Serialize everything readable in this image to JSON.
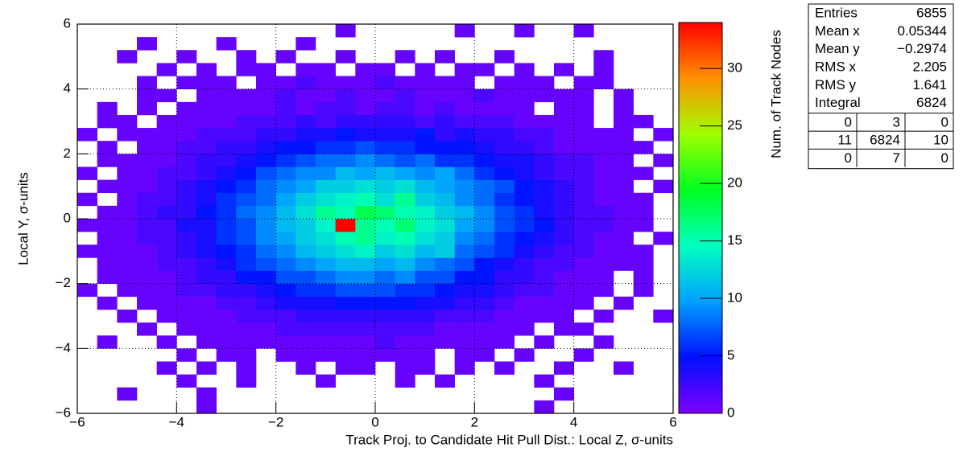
{
  "chart_data": {
    "type": "heatmap2d",
    "x_label": "Track Proj. to Candidate Hit Pull Dist.: Local Z, σ-units",
    "y_label": "Local Y, σ-units",
    "z_label": "Num. of Track Nodes",
    "xlim": [
      -6,
      6
    ],
    "ylim": [
      -6,
      6
    ],
    "zlim": [
      0,
      34
    ],
    "xticks": [
      {
        "value": -6,
        "label": "−6"
      },
      {
        "value": -4,
        "label": "−4"
      },
      {
        "value": -2,
        "label": "−2"
      },
      0,
      2,
      4,
      6
    ],
    "yticks": [
      {
        "value": -6,
        "label": "−6"
      },
      {
        "value": -4,
        "label": "−4"
      },
      {
        "value": -2,
        "label": "−2"
      },
      0,
      2,
      4,
      6
    ],
    "zticks": [
      0,
      5,
      10,
      15,
      20,
      25,
      30
    ],
    "grid": true,
    "palette": [
      "#8000ff",
      "#0010ff",
      "#00a0ff",
      "#00ffc0",
      "#00ff20",
      "#a0ff00",
      "#ff9000",
      "#ff0000"
    ],
    "xbins": [
      -6,
      -5.6,
      -5.2,
      -4.8,
      -4.4,
      -4,
      -3.6,
      -3.2,
      -2.8,
      -2.4,
      -2,
      -1.6,
      -1.2,
      -0.8,
      -0.4,
      0,
      0.4,
      0.8,
      1.2,
      1.6,
      2,
      2.4,
      2.8,
      3.2,
      3.6,
      4,
      4.4,
      4.8,
      5.2,
      5.6,
      6
    ],
    "ybins": [
      -6,
      -5.6,
      -5.2,
      -4.8,
      -4.4,
      -4,
      -3.6,
      -3.2,
      -2.8,
      -2.4,
      -2,
      -1.6,
      -1.2,
      -0.8,
      -0.4,
      0,
      0.4,
      0.8,
      1.2,
      1.6,
      2,
      2.4,
      2.8,
      3.2,
      3.6,
      4,
      4.4,
      4.8,
      5.2,
      5.6,
      6
    ],
    "z": [
      [
        0,
        0,
        0,
        0,
        0,
        0,
        1,
        0,
        0,
        0,
        0,
        0,
        0,
        0,
        0,
        0,
        0,
        0,
        0,
        0,
        0,
        0,
        0,
        1,
        0,
        0,
        0,
        0,
        0,
        0
      ],
      [
        0,
        0,
        1,
        0,
        0,
        0,
        1,
        0,
        0,
        0,
        0,
        0,
        0,
        0,
        0,
        0,
        0,
        0,
        0,
        0,
        0,
        0,
        0,
        0,
        1,
        0,
        0,
        0,
        0,
        0
      ],
      [
        0,
        0,
        0,
        0,
        0,
        1,
        0,
        0,
        1,
        0,
        0,
        0,
        1,
        0,
        0,
        0,
        1,
        0,
        1,
        0,
        0,
        0,
        0,
        1,
        0,
        0,
        0,
        0,
        0,
        0
      ],
      [
        0,
        0,
        0,
        0,
        1,
        0,
        1,
        0,
        1,
        0,
        0,
        1,
        0,
        1,
        1,
        0,
        1,
        1,
        0,
        1,
        0,
        1,
        0,
        0,
        1,
        0,
        0,
        1,
        0,
        0
      ],
      [
        0,
        0,
        0,
        0,
        0,
        1,
        0,
        1,
        1,
        0,
        1,
        1,
        1,
        1,
        1,
        1,
        1,
        1,
        0,
        1,
        1,
        0,
        1,
        0,
        0,
        1,
        0,
        0,
        0,
        0
      ],
      [
        0,
        1,
        0,
        0,
        1,
        0,
        1,
        1,
        1,
        1,
        1,
        1,
        1,
        1,
        1,
        2,
        1,
        1,
        1,
        1,
        1,
        1,
        0,
        1,
        0,
        0,
        1,
        0,
        0,
        0
      ],
      [
        0,
        0,
        0,
        1,
        0,
        1,
        1,
        1,
        1,
        1,
        2,
        2,
        2,
        2,
        2,
        2,
        2,
        2,
        1,
        1,
        1,
        1,
        1,
        0,
        1,
        1,
        0,
        0,
        0,
        0
      ],
      [
        0,
        0,
        1,
        0,
        1,
        1,
        1,
        1,
        2,
        2,
        2,
        3,
        3,
        3,
        3,
        3,
        3,
        3,
        2,
        2,
        2,
        1,
        1,
        1,
        1,
        0,
        1,
        0,
        0,
        1
      ],
      [
        0,
        1,
        0,
        1,
        1,
        1,
        1,
        2,
        2,
        3,
        4,
        4,
        4,
        5,
        5,
        5,
        5,
        4,
        4,
        3,
        3,
        2,
        1,
        1,
        1,
        1,
        0,
        1,
        0,
        0
      ],
      [
        1,
        0,
        1,
        1,
        1,
        2,
        2,
        3,
        3,
        4,
        5,
        6,
        6,
        7,
        7,
        7,
        6,
        6,
        5,
        4,
        4,
        3,
        2,
        2,
        1,
        1,
        1,
        0,
        1,
        0
      ],
      [
        0,
        1,
        1,
        1,
        1,
        2,
        3,
        3,
        5,
        5,
        7,
        7,
        8,
        9,
        9,
        8,
        9,
        7,
        7,
        5,
        5,
        3,
        3,
        2,
        1,
        1,
        1,
        0,
        1,
        0
      ],
      [
        0,
        1,
        1,
        1,
        2,
        2,
        3,
        4,
        6,
        7,
        8,
        9,
        10,
        11,
        11,
        10,
        11,
        9,
        8,
        7,
        5,
        4,
        3,
        2,
        2,
        1,
        1,
        1,
        1,
        0
      ],
      [
        1,
        1,
        1,
        1,
        2,
        3,
        4,
        5,
        6,
        8,
        9,
        11,
        12,
        13,
        14,
        12,
        13,
        11,
        12,
        8,
        7,
        6,
        4,
        3,
        2,
        2,
        1,
        1,
        1,
        0
      ],
      [
        0,
        1,
        1,
        2,
        2,
        3,
        4,
        6,
        7,
        9,
        10,
        12,
        13,
        15,
        16,
        14,
        15,
        13,
        12,
        9,
        8,
        6,
        5,
        4,
        3,
        2,
        1,
        1,
        0,
        1
      ],
      [
        1,
        1,
        1,
        2,
        2,
        4,
        4,
        6,
        7,
        9,
        11,
        12,
        14,
        34,
        16,
        15,
        17,
        14,
        13,
        10,
        9,
        7,
        6,
        5,
        3,
        2,
        2,
        1,
        1,
        0
      ],
      [
        0,
        1,
        1,
        2,
        3,
        3,
        5,
        6,
        8,
        9,
        11,
        13,
        16,
        15,
        18,
        17,
        15,
        14,
        12,
        11,
        9,
        7,
        6,
        4,
        3,
        2,
        2,
        1,
        1,
        0
      ],
      [
        1,
        0,
        1,
        2,
        2,
        3,
        4,
        6,
        7,
        8,
        10,
        12,
        13,
        14,
        15,
        13,
        16,
        12,
        11,
        9,
        8,
        6,
        5,
        4,
        3,
        2,
        1,
        1,
        1,
        0
      ],
      [
        0,
        1,
        1,
        1,
        2,
        3,
        4,
        5,
        6,
        8,
        9,
        10,
        12,
        12,
        13,
        12,
        13,
        11,
        10,
        9,
        8,
        7,
        5,
        4,
        3,
        2,
        1,
        1,
        0,
        1
      ],
      [
        1,
        0,
        1,
        1,
        2,
        2,
        3,
        4,
        5,
        7,
        8,
        9,
        9,
        11,
        10,
        11,
        10,
        9,
        10,
        8,
        6,
        5,
        4,
        3,
        2,
        2,
        1,
        1,
        1,
        0
      ],
      [
        0,
        1,
        1,
        1,
        1,
        2,
        3,
        3,
        4,
        5,
        6,
        7,
        8,
        8,
        9,
        8,
        7,
        8,
        6,
        6,
        5,
        4,
        4,
        3,
        2,
        2,
        1,
        1,
        0,
        1
      ],
      [
        0,
        1,
        0,
        1,
        1,
        2,
        2,
        3,
        3,
        4,
        5,
        5,
        6,
        6,
        7,
        6,
        6,
        5,
        5,
        5,
        4,
        3,
        3,
        2,
        1,
        1,
        1,
        1,
        1,
        0
      ],
      [
        1,
        0,
        1,
        1,
        1,
        1,
        2,
        2,
        2,
        3,
        3,
        4,
        4,
        5,
        4,
        4,
        4,
        5,
        3,
        4,
        3,
        3,
        2,
        2,
        1,
        1,
        1,
        1,
        0,
        1
      ],
      [
        0,
        1,
        1,
        0,
        1,
        1,
        1,
        1,
        2,
        2,
        2,
        3,
        2,
        3,
        3,
        3,
        3,
        2,
        3,
        2,
        2,
        2,
        1,
        1,
        1,
        1,
        0,
        1,
        1,
        0
      ],
      [
        0,
        1,
        0,
        1,
        0,
        1,
        1,
        1,
        1,
        1,
        2,
        1,
        2,
        2,
        1,
        2,
        2,
        1,
        2,
        1,
        1,
        1,
        1,
        0,
        1,
        1,
        0,
        1,
        0,
        0
      ],
      [
        0,
        0,
        0,
        1,
        1,
        0,
        1,
        1,
        1,
        1,
        2,
        1,
        1,
        2,
        1,
        1,
        2,
        1,
        1,
        1,
        2,
        1,
        1,
        1,
        1,
        1,
        0,
        1,
        0,
        0
      ],
      [
        0,
        0,
        0,
        1,
        0,
        1,
        1,
        1,
        0,
        1,
        1,
        2,
        1,
        1,
        1,
        2,
        1,
        1,
        1,
        1,
        0,
        1,
        1,
        1,
        0,
        1,
        1,
        0,
        0,
        0
      ],
      [
        0,
        0,
        0,
        0,
        1,
        0,
        1,
        0,
        1,
        1,
        0,
        1,
        1,
        0,
        1,
        1,
        0,
        1,
        0,
        1,
        1,
        0,
        1,
        0,
        1,
        0,
        1,
        0,
        0,
        0
      ],
      [
        0,
        0,
        1,
        0,
        0,
        1,
        0,
        0,
        1,
        0,
        1,
        0,
        0,
        1,
        0,
        0,
        1,
        0,
        1,
        0,
        0,
        1,
        0,
        0,
        0,
        0,
        1,
        0,
        0,
        0
      ],
      [
        0,
        0,
        0,
        1,
        0,
        0,
        0,
        1,
        0,
        0,
        0,
        1,
        0,
        0,
        0,
        0,
        0,
        0,
        0,
        0,
        0,
        0,
        0,
        0,
        0,
        0,
        0,
        0,
        0,
        0
      ],
      [
        0,
        0,
        0,
        0,
        0,
        0,
        0,
        0,
        0,
        0,
        0,
        0,
        0,
        1,
        0,
        0,
        0,
        0,
        0,
        1,
        0,
        0,
        1,
        0,
        0,
        1,
        0,
        0,
        0,
        0
      ]
    ],
    "stats": {
      "rows": [
        {
          "label": "Entries",
          "value": 6855
        },
        {
          "label": "Mean x",
          "value": 0.05344
        },
        {
          "label": "Mean y",
          "value": {
            "value": -0.2974,
            "label": "−0.2974"
          }
        },
        {
          "label": "RMS x",
          "value": 2.205
        },
        {
          "label": "RMS y",
          "value": 1.641
        },
        {
          "label": "Integral",
          "value": 6824
        }
      ],
      "grid": [
        [
          0,
          3,
          0
        ],
        [
          11,
          6824,
          10
        ],
        [
          0,
          7,
          0
        ]
      ]
    }
  }
}
